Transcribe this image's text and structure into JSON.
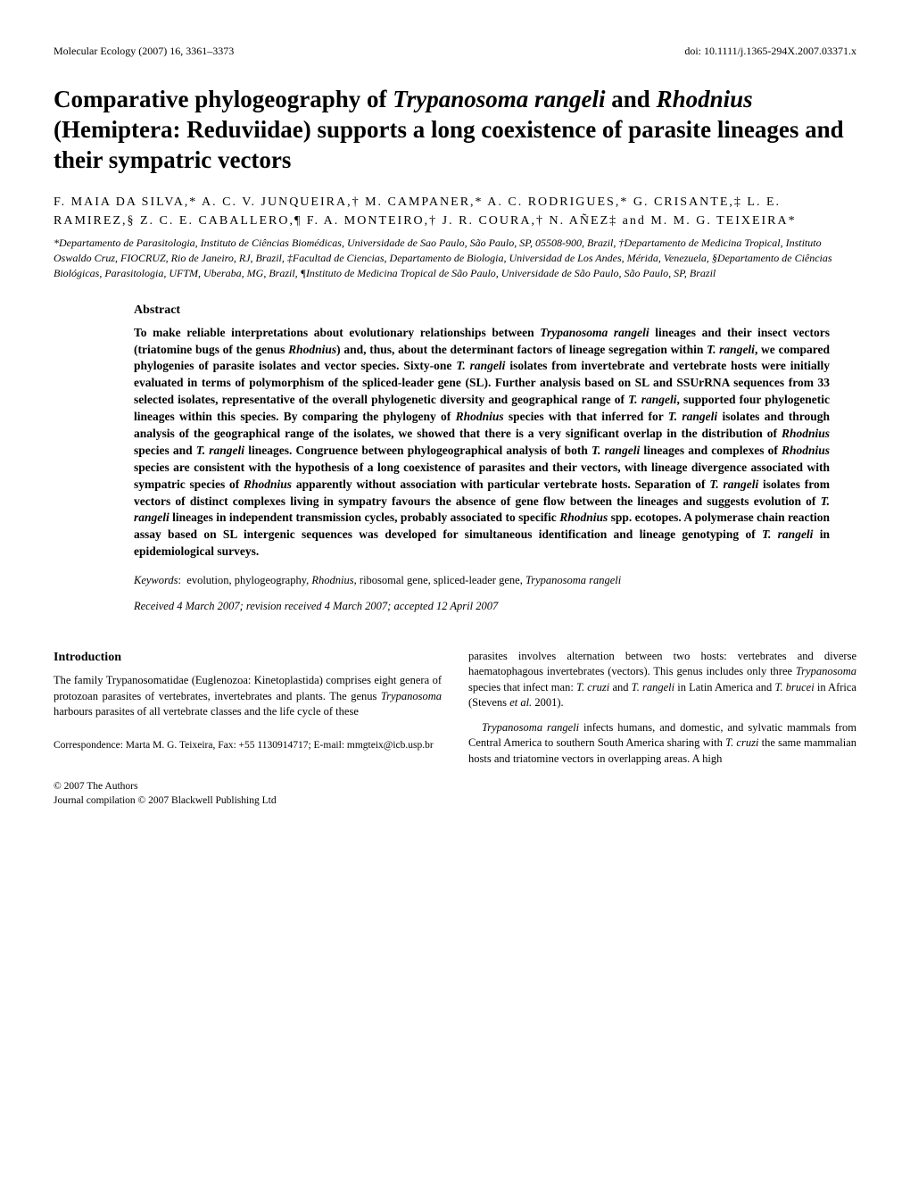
{
  "header": {
    "journal": "Molecular Ecology (2007) 16, 3361–3373",
    "doi": "doi: 10.1111/j.1365-294X.2007.03371.x"
  },
  "title_html": "Comparative phylogeography of <span class=\"italic\">Trypanosoma rangeli</span> and <span class=\"italic\">Rhodnius</span> (Hemiptera: Reduviidae) supports a long coexistence of parasite lineages and their sympatric vectors",
  "authors_html": "F. MAIA DA SILVA,* A. C. V. JUNQUEIRA,† M. CAMPANER,* A. C. RODRIGUES,* G. CRISANTE,‡ L. E. RAMIREZ,§ Z. C. E. CABALLERO,¶ F. A. MONTEIRO,† J. R. COURA,† N. AÑEZ‡ and M. M. G. TEIXEIRA*",
  "affiliations_html": "*Departamento de Parasitologia, Instituto de Ciências Biomédicas, Universidade de Sao Paulo, São Paulo, SP, 05508-900, Brazil, †Departamento de Medicina Tropical, Instituto Oswaldo Cruz, FIOCRUZ, Rio de Janeiro, RJ, Brazil, ‡Facultad de Ciencias, Departamento de Biologia, Universidad de Los Andes, Mérida, Venezuela, §Departamento de Ciências Biológicas, Parasitologia, UFTM, Uberaba, MG, Brazil, ¶Instituto de Medicina Tropical de São Paulo, Universidade de São Paulo, São Paulo, SP, Brazil",
  "abstract": {
    "heading": "Abstract",
    "body_html": "To make reliable interpretations about evolutionary relationships between <span class=\"italic\">Trypanosoma rangeli</span> lineages and their insect vectors (triatomine bugs of the genus <span class=\"italic\">Rhodnius</span>) and, thus, about the determinant factors of lineage segregation within <span class=\"italic\">T. rangeli</span>, we compared phylogenies of parasite isolates and vector species. Sixty-one <span class=\"italic\">T. rangeli</span> isolates from invertebrate and vertebrate hosts were initially evaluated in terms of polymorphism of the spliced-leader gene (SL). Further analysis based on SL and SSUrRNA sequences from 33 selected isolates, representative of the overall phylogenetic diversity and geographical range of <span class=\"italic\">T. rangeli</span>, supported four phylogenetic lineages within this species. By comparing the phylogeny of <span class=\"italic\">Rhodnius</span> species with that inferred for <span class=\"italic\">T. rangeli</span> isolates and through analysis of the geographical range of the isolates, we showed that there is a very significant overlap in the distribution of <span class=\"italic\">Rhodnius</span> species and <span class=\"italic\">T. rangeli</span> lineages. Congruence between phylogeographical analysis of both <span class=\"italic\">T. rangeli</span> lineages and complexes of <span class=\"italic\">Rhodnius</span> species are consistent with the hypothesis of a long coexistence of parasites and their vectors, with lineage divergence associated with sympatric species of <span class=\"italic\">Rhodnius</span> apparently without association with particular vertebrate hosts. Separation of <span class=\"italic\">T. rangeli</span> isolates from vectors of distinct complexes living in sympatry favours the absence of gene flow between the lineages and suggests evolution of <span class=\"italic\">T. rangeli</span> lineages in independent transmission cycles, probably associated to specific <span class=\"italic\">Rhodnius</span> spp. ecotopes. A polymerase chain reaction assay based on SL intergenic sequences was developed for simultaneous identification and lineage genotyping of <span class=\"italic\">T. rangeli</span> in epidemiological surveys.",
    "keywords_label": "Keywords",
    "keywords_html": "evolution, phylogeography, <span class=\"italic\">Rhodnius</span>, ribosomal gene, spliced-leader gene, <span class=\"italic\">Trypanosoma rangeli</span>",
    "received": "Received 4 March 2007; revision received 4 March 2007; accepted 12 April 2007"
  },
  "intro": {
    "heading": "Introduction",
    "col1_html": "The family Trypanosomatidae (Euglenozoa: Kinetoplastida) comprises eight genera of protozoan parasites of vertebrates, invertebrates and plants. The genus <span class=\"italic\">Trypanosoma</span> harbours parasites of all vertebrate classes and the life cycle of these",
    "col2a_html": "parasites involves alternation between two hosts: vertebrates and diverse haematophagous invertebrates (vectors). This genus includes only three <span class=\"italic\">Trypanosoma</span> species that infect man: <span class=\"italic\">T. cruzi</span> and <span class=\"italic\">T. rangeli</span> in Latin America and <span class=\"italic\">T. brucei</span> in Africa (Stevens <span class=\"italic\">et al.</span> 2001).",
    "col2b_html": "<span class=\"italic\">Trypanosoma rangeli</span> infects humans, and domestic, and sylvatic mammals from Central America to southern South America sharing with <span class=\"italic\">T. cruzi</span> the same mammalian hosts and triatomine vectors in overlapping areas. A high"
  },
  "correspondence": "Correspondence: Marta M. G. Teixeira, Fax: +55 1130914717; E-mail: mmgteix@icb.usp.br",
  "copyright": {
    "line1": "© 2007 The Authors",
    "line2": "Journal compilation © 2007 Blackwell Publishing Ltd"
  }
}
